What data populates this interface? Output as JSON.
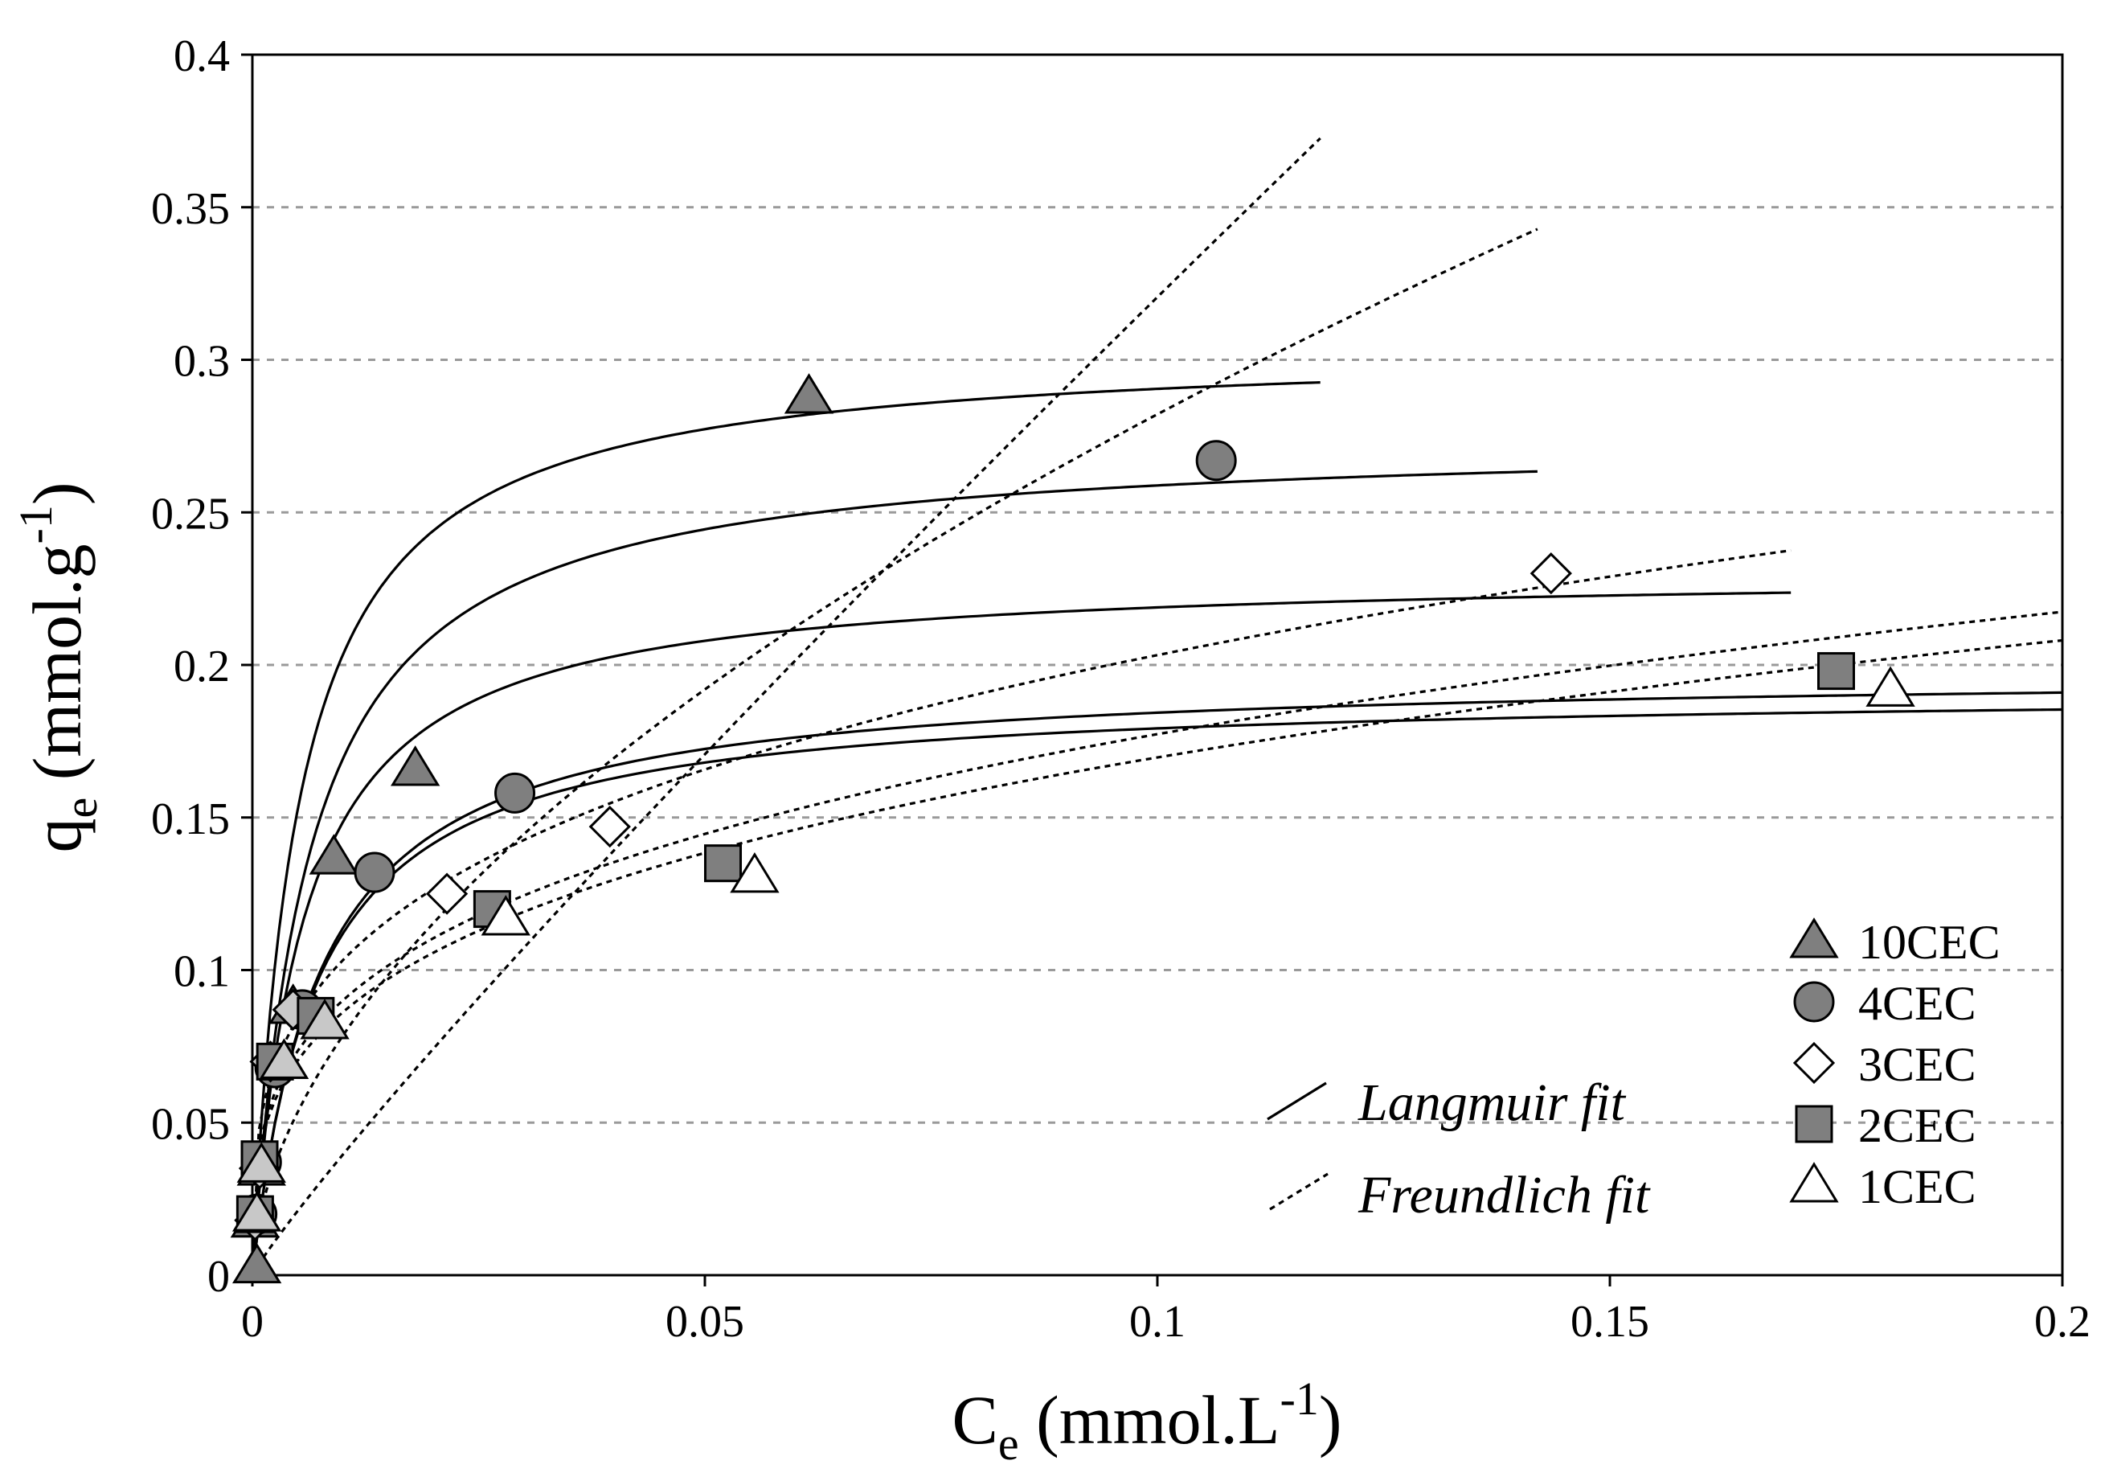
{
  "chart_data": {
    "type": "scatter",
    "title": "",
    "xlabel": "C",
    "xlabel_sub": "e",
    "xlabel_unit": " (mmol.L",
    "xlabel_sup": "-1",
    "xlabel_close": ")",
    "ylabel": "q",
    "ylabel_sub": "e",
    "ylabel_unit": " (mmol.g",
    "ylabel_sup": "-1",
    "ylabel_close": ")",
    "xlim": [
      0,
      0.2
    ],
    "ylim": [
      0,
      0.4
    ],
    "x_ticks": [
      "0",
      "0.05",
      "0.1",
      "0.15",
      "0.2"
    ],
    "x_tick_values": [
      0,
      0.05,
      0.1,
      0.15,
      0.2
    ],
    "y_ticks": [
      "0",
      "0.05",
      "0.1",
      "0.15",
      "0.2",
      "0.25",
      "0.3",
      "0.35",
      "0.4"
    ],
    "y_tick_values": [
      0,
      0.05,
      0.1,
      0.15,
      0.2,
      0.25,
      0.3,
      0.35,
      0.4
    ],
    "grid": "horizontal dashed",
    "legend_position": "bottom-right",
    "series": [
      {
        "name": "10CEC",
        "marker": "triangle",
        "fill": "#7f7f7f",
        "points": [
          [
            0.0005,
            0.003
          ],
          [
            0.0003,
            0.018
          ],
          [
            0.001,
            0.035
          ],
          [
            0.0035,
            0.07
          ],
          [
            0.0045,
            0.088
          ],
          [
            0.009,
            0.137
          ],
          [
            0.018,
            0.166
          ],
          [
            0.0615,
            0.288
          ]
        ],
        "langmuir": {
          "qmax": 0.305,
          "KL": 200,
          "xmax": 0.118
        },
        "freundlich": {
          "KF": 2.6,
          "n": 1.1,
          "xmax": 0.118
        }
      },
      {
        "name": "4CEC",
        "marker": "circle",
        "fill": "#7f7f7f",
        "points": [
          [
            0.0005,
            0.02
          ],
          [
            0.001,
            0.037
          ],
          [
            0.0025,
            0.068
          ],
          [
            0.0055,
            0.087
          ],
          [
            0.0135,
            0.132
          ],
          [
            0.029,
            0.158
          ],
          [
            0.1065,
            0.267
          ]
        ],
        "langmuir": {
          "qmax": 0.275,
          "KL": 160,
          "xmax": 0.142
        },
        "freundlich": {
          "KF": 1.014,
          "n": 1.8,
          "xmax": 0.142
        }
      },
      {
        "name": "3CEC",
        "marker": "diamond",
        "fill": "#ffffff",
        "points": [
          [
            0.0003,
            0.018
          ],
          [
            0.0008,
            0.035
          ],
          [
            0.002,
            0.07
          ],
          [
            0.0045,
            0.087
          ],
          [
            0.0215,
            0.125
          ],
          [
            0.0395,
            0.147
          ],
          [
            0.1435,
            0.23
          ]
        ],
        "langmuir": {
          "qmax": 0.231,
          "KL": 180,
          "xmax": 0.17
        },
        "freundlich": {
          "KF": 0.4,
          "n": 3.4,
          "xmax": 0.17
        }
      },
      {
        "name": "2CEC",
        "marker": "square",
        "fill": "#7f7f7f",
        "points": [
          [
            0.0003,
            0.02
          ],
          [
            0.0008,
            0.038
          ],
          [
            0.0025,
            0.07
          ],
          [
            0.007,
            0.085
          ],
          [
            0.0265,
            0.12
          ],
          [
            0.052,
            0.135
          ],
          [
            0.175,
            0.198
          ]
        ],
        "langmuir": {
          "qmax": 0.198,
          "KL": 135,
          "xmax": 0.2
        },
        "freundlich": {
          "KF": 0.349,
          "n": 3.4,
          "xmax": 0.2
        }
      },
      {
        "name": "1CEC",
        "marker": "triangle",
        "fill": "#ffffff",
        "points": [
          [
            0.0005,
            0.02
          ],
          [
            0.001,
            0.036
          ],
          [
            0.0035,
            0.07
          ],
          [
            0.008,
            0.083
          ],
          [
            0.028,
            0.117
          ],
          [
            0.0555,
            0.131
          ],
          [
            0.181,
            0.192
          ]
        ],
        "langmuir": {
          "qmax": 0.192,
          "KL": 140,
          "xmax": 0.2
        },
        "freundlich": {
          "KF": 0.334,
          "n": 3.4,
          "xmax": 0.2
        }
      }
    ],
    "fit_legend": [
      "Langmuir fit",
      "Freundlich fit"
    ]
  }
}
